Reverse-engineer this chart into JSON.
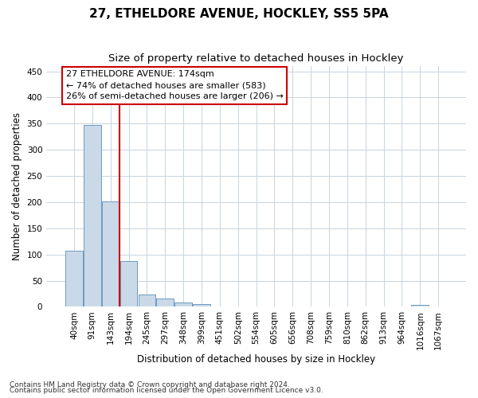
{
  "title": "27, ETHELDORE AVENUE, HOCKLEY, SS5 5PA",
  "subtitle": "Size of property relative to detached houses in Hockley",
  "xlabel": "Distribution of detached houses by size in Hockley",
  "ylabel": "Number of detached properties",
  "bin_labels": [
    "40sqm",
    "91sqm",
    "143sqm",
    "194sqm",
    "245sqm",
    "297sqm",
    "348sqm",
    "399sqm",
    "451sqm",
    "502sqm",
    "554sqm",
    "605sqm",
    "656sqm",
    "708sqm",
    "759sqm",
    "810sqm",
    "862sqm",
    "913sqm",
    "964sqm",
    "1016sqm",
    "1067sqm"
  ],
  "bar_heights": [
    107,
    348,
    201,
    88,
    24,
    16,
    8,
    5,
    0,
    0,
    0,
    0,
    0,
    0,
    0,
    0,
    0,
    0,
    0,
    3,
    0
  ],
  "bar_color": "#c9d9e8",
  "bar_edge_color": "#5b8db8",
  "ylim": [
    0,
    460
  ],
  "yticks": [
    0,
    50,
    100,
    150,
    200,
    250,
    300,
    350,
    400,
    450
  ],
  "vline_color": "#cc0000",
  "vline_pos": 2.5,
  "annotation_text": "27 ETHELDORE AVENUE: 174sqm\n← 74% of detached houses are smaller (583)\n26% of semi-detached houses are larger (206) →",
  "annotation_box_color": "#ffffff",
  "annotation_box_edge": "#cc0000",
  "footer1": "Contains HM Land Registry data © Crown copyright and database right 2024.",
  "footer2": "Contains public sector information licensed under the Open Government Licence v3.0.",
  "bg_color": "#ffffff",
  "plot_bg_color": "#ffffff",
  "grid_color": "#c8d4e0",
  "title_fontsize": 11,
  "subtitle_fontsize": 9.5,
  "axis_label_fontsize": 8.5,
  "tick_fontsize": 7.5,
  "annotation_fontsize": 8,
  "footer_fontsize": 6.5
}
